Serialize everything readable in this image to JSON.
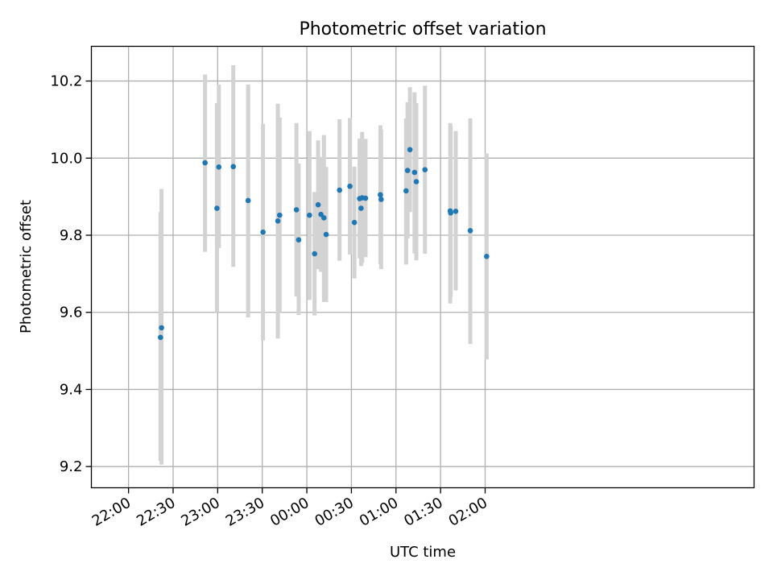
{
  "chart_data": {
    "type": "scatter",
    "title": "Photometric offset variation",
    "xlabel": "UTC time",
    "ylabel": "Photometric offset",
    "xlim_minutes": [
      -25,
      421
    ],
    "ylim": [
      9.145,
      10.29
    ],
    "x_ticks": [
      {
        "minutes": 0,
        "label": "22:00"
      },
      {
        "minutes": 30,
        "label": "22:30"
      },
      {
        "minutes": 60,
        "label": "23:00"
      },
      {
        "minutes": 90,
        "label": "23:30"
      },
      {
        "minutes": 120,
        "label": "00:00"
      },
      {
        "minutes": 150,
        "label": "00:30"
      },
      {
        "minutes": 180,
        "label": "01:00"
      },
      {
        "minutes": 210,
        "label": "01:30"
      },
      {
        "minutes": 240,
        "label": "02:00"
      }
    ],
    "y_ticks": [
      {
        "value": 9.2,
        "label": "9.2"
      },
      {
        "value": 9.4,
        "label": "9.4"
      },
      {
        "value": 9.6,
        "label": "9.6"
      },
      {
        "value": 9.8,
        "label": "9.8"
      },
      {
        "value": 10.0,
        "label": "10.0"
      },
      {
        "value": 10.2,
        "label": "10.2"
      }
    ],
    "grid": true,
    "point_color": "#1f77b4",
    "errorbar_color": "#d3d3d3",
    "points": [
      {
        "x": 21.5,
        "y": 9.535,
        "err_low": 9.215,
        "err_high": 9.86
      },
      {
        "x": 22.2,
        "y": 9.56,
        "err_low": 9.205,
        "err_high": 9.92
      },
      {
        "x": 51.5,
        "y": 9.988,
        "err_low": 9.757,
        "err_high": 10.217
      },
      {
        "x": 59.5,
        "y": 9.87,
        "err_low": 9.6,
        "err_high": 10.143
      },
      {
        "x": 60.8,
        "y": 9.977,
        "err_low": 9.767,
        "err_high": 10.191
      },
      {
        "x": 70.5,
        "y": 9.978,
        "err_low": 9.718,
        "err_high": 10.241
      },
      {
        "x": 80.5,
        "y": 9.89,
        "err_low": 9.587,
        "err_high": 10.191
      },
      {
        "x": 90.5,
        "y": 9.808,
        "err_low": 9.527,
        "err_high": 10.089
      },
      {
        "x": 100.5,
        "y": 9.837,
        "err_low": 9.532,
        "err_high": 10.141
      },
      {
        "x": 101.7,
        "y": 9.852,
        "err_low": 9.6,
        "err_high": 10.105
      },
      {
        "x": 113.0,
        "y": 9.866,
        "err_low": 9.641,
        "err_high": 10.091
      },
      {
        "x": 114.5,
        "y": 9.788,
        "err_low": 9.593,
        "err_high": 9.986
      },
      {
        "x": 121.8,
        "y": 9.852,
        "err_low": 9.632,
        "err_high": 10.07
      },
      {
        "x": 125.2,
        "y": 9.752,
        "err_low": 9.592,
        "err_high": 9.912
      },
      {
        "x": 127.6,
        "y": 9.879,
        "err_low": 9.712,
        "err_high": 10.046
      },
      {
        "x": 129.5,
        "y": 9.854,
        "err_low": 9.705,
        "err_high": 10.003
      },
      {
        "x": 131.5,
        "y": 9.845,
        "err_low": 9.627,
        "err_high": 10.06
      },
      {
        "x": 133.0,
        "y": 9.802,
        "err_low": 9.627,
        "err_high": 9.977
      },
      {
        "x": 142.0,
        "y": 9.917,
        "err_low": 9.734,
        "err_high": 10.101
      },
      {
        "x": 149.0,
        "y": 9.927,
        "err_low": 9.75,
        "err_high": 10.104
      },
      {
        "x": 152.0,
        "y": 9.833,
        "err_low": 9.688,
        "err_high": 9.978
      },
      {
        "x": 155.5,
        "y": 9.895,
        "err_low": 9.74,
        "err_high": 10.051
      },
      {
        "x": 156.5,
        "y": 9.87,
        "err_low": 9.72,
        "err_high": 10.022
      },
      {
        "x": 157.2,
        "y": 9.897,
        "err_low": 9.728,
        "err_high": 10.068
      },
      {
        "x": 159.5,
        "y": 9.896,
        "err_low": 9.743,
        "err_high": 10.05
      },
      {
        "x": 169.5,
        "y": 9.905,
        "err_low": 9.725,
        "err_high": 10.085
      },
      {
        "x": 170.0,
        "y": 9.893,
        "err_low": 9.712,
        "err_high": 10.074
      },
      {
        "x": 186.8,
        "y": 9.915,
        "err_low": 9.724,
        "err_high": 10.103
      },
      {
        "x": 187.8,
        "y": 9.968,
        "err_low": 9.792,
        "err_high": 10.145
      },
      {
        "x": 189.4,
        "y": 10.022,
        "err_low": 9.86,
        "err_high": 10.184
      },
      {
        "x": 192.5,
        "y": 9.963,
        "err_low": 9.753,
        "err_high": 10.171
      },
      {
        "x": 193.7,
        "y": 9.939,
        "err_low": 9.735,
        "err_high": 10.143
      },
      {
        "x": 199.5,
        "y": 9.97,
        "err_low": 9.752,
        "err_high": 10.188
      },
      {
        "x": 216.5,
        "y": 9.863,
        "err_low": 9.623,
        "err_high": 10.091
      },
      {
        "x": 216.8,
        "y": 9.858,
        "err_low": 9.64,
        "err_high": 10.083
      },
      {
        "x": 220.2,
        "y": 9.862,
        "err_low": 9.657,
        "err_high": 10.07
      },
      {
        "x": 230.0,
        "y": 9.812,
        "err_low": 9.518,
        "err_high": 10.103
      },
      {
        "x": 241.0,
        "y": 9.745,
        "err_low": 9.478,
        "err_high": 10.012
      }
    ]
  }
}
